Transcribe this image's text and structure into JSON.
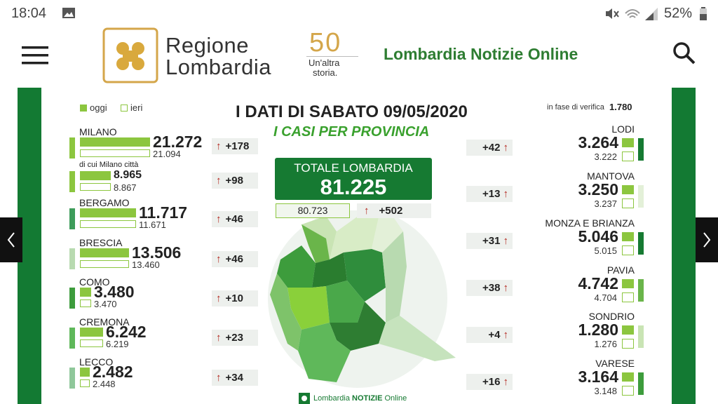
{
  "status_bar": {
    "time": "18:04",
    "battery": "52%"
  },
  "header": {
    "brand_lines": [
      "Regione",
      "Lombardia"
    ],
    "anniversary": "50",
    "tagline": [
      "Un'altra",
      "storia."
    ],
    "site_title": "Lombardia Notizie Online"
  },
  "infographic": {
    "legend": [
      "oggi",
      "ieri"
    ],
    "title": "I DATI DI SABATO 09/05/2020",
    "subtitle": "I CASI PER PROVINCIA",
    "pending_label": "in fase di verifica",
    "pending_value": "1.780",
    "total": {
      "label": "TOTALE LOMBARDIA",
      "today": "81.225",
      "yesterday": "80.723",
      "change": "+502"
    },
    "left": [
      {
        "name": "MILANO",
        "today": "21.272",
        "yesterday": "21.094",
        "change": "+178"
      },
      {
        "name": "di cui Milano città",
        "today": "8.965",
        "yesterday": "8.867",
        "change": "+98"
      },
      {
        "name": "BERGAMO",
        "today": "11.717",
        "yesterday": "11.671",
        "change": "+46"
      },
      {
        "name": "BRESCIA",
        "today": "13.506",
        "yesterday": "13.460",
        "change": "+46"
      },
      {
        "name": "COMO",
        "today": "3.480",
        "yesterday": "3.470",
        "change": "+10"
      },
      {
        "name": "CREMONA",
        "today": "6.242",
        "yesterday": "6.219",
        "change": "+23"
      },
      {
        "name": "LECCO",
        "today": "2.482",
        "yesterday": "2.448",
        "change": "+34"
      }
    ],
    "right": [
      {
        "name": "LODI",
        "today": "3.264",
        "yesterday": "3.222",
        "change": "+42"
      },
      {
        "name": "MANTOVA",
        "today": "3.250",
        "yesterday": "3.237",
        "change": "+13"
      },
      {
        "name": "MONZA E BRIANZA",
        "today": "5.046",
        "yesterday": "5.015",
        "change": "+31"
      },
      {
        "name": "PAVIA",
        "today": "4.742",
        "yesterday": "4.704",
        "change": "+38"
      },
      {
        "name": "SONDRIO",
        "today": "1.280",
        "yesterday": "1.276",
        "change": "+4"
      },
      {
        "name": "VARESE",
        "today": "3.164",
        "yesterday": "3.148",
        "change": "+16"
      }
    ],
    "footer": [
      "Lombardia",
      "NOTIZIE",
      "Online"
    ]
  }
}
